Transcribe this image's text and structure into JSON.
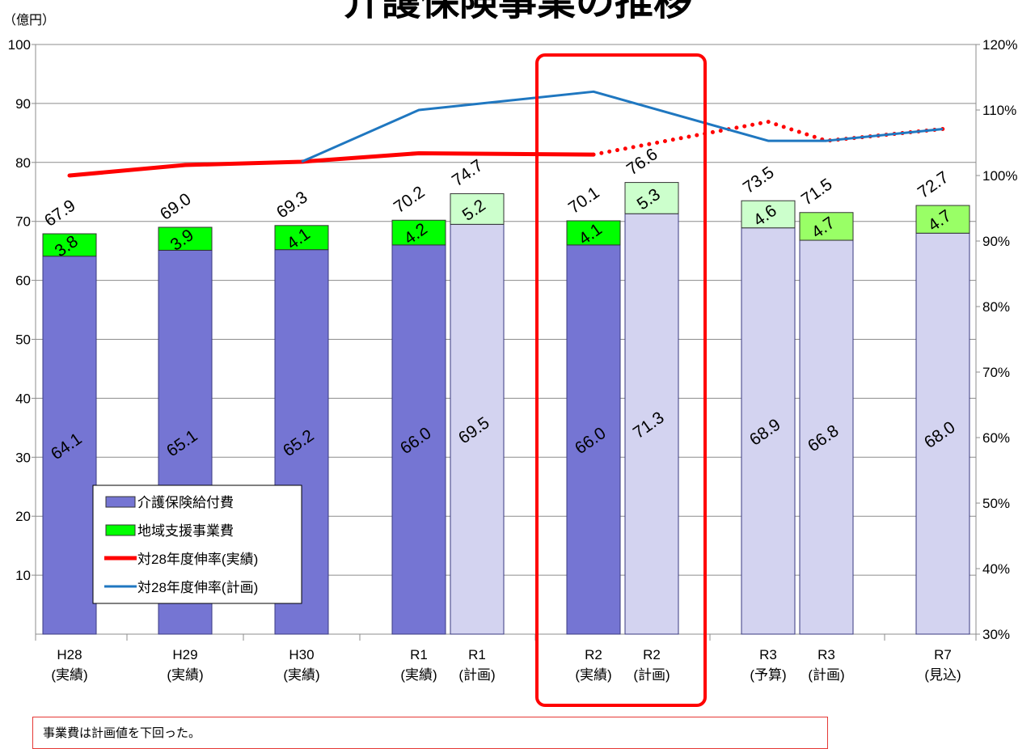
{
  "title": "介護保険事業の推移",
  "chart_data": {
    "type": "bar",
    "unit_label": "（億円）",
    "categories": [
      [
        "H28",
        "(実績)"
      ],
      [
        "H29",
        "(実績)"
      ],
      [
        "H30",
        "(実績)"
      ],
      [
        "R1",
        "(実績)"
      ],
      [
        "R1",
        "(計画)"
      ],
      [
        "R2",
        "(実績)"
      ],
      [
        "R2",
        "(計画)"
      ],
      [
        "R3",
        "(予算)"
      ],
      [
        "R3",
        "(計画)"
      ],
      [
        "R7",
        "(見込)"
      ]
    ],
    "kinds": [
      "actual",
      "actual",
      "actual",
      "actual",
      "plan",
      "actual",
      "plan",
      "plan",
      "plan",
      "plan"
    ],
    "series": [
      {
        "name": "介護保険給付費",
        "values": [
          64.1,
          65.1,
          65.2,
          66.0,
          69.5,
          66.0,
          71.3,
          68.9,
          66.8,
          68.0
        ]
      },
      {
        "name": "地域支援事業費",
        "values": [
          3.8,
          3.9,
          4.1,
          4.2,
          5.2,
          4.1,
          5.3,
          4.6,
          4.7,
          4.7
        ]
      }
    ],
    "totals": [
      67.9,
      69.0,
      69.3,
      70.2,
      74.7,
      70.1,
      76.6,
      73.5,
      71.5,
      72.7
    ],
    "rate_series": [
      {
        "name": "対28年度伸率(実績)",
        "style": "red",
        "points": [
          [
            0,
            100.0
          ],
          [
            1,
            101.6
          ],
          [
            2,
            102.1
          ],
          [
            3,
            103.4
          ],
          [
            5,
            103.2
          ]
        ]
      },
      {
        "name": "対28年度伸率(実績)",
        "style": "red-dotted",
        "points": [
          [
            5,
            103.2
          ],
          [
            7,
            108.2
          ],
          [
            8,
            105.3
          ],
          [
            9,
            107.1
          ]
        ]
      },
      {
        "name": "対28年度伸率(計画)",
        "style": "blue",
        "points": [
          [
            2,
            102.1
          ],
          [
            3,
            110.0
          ],
          [
            5,
            112.8
          ],
          [
            7,
            105.3
          ],
          [
            8,
            105.3
          ],
          [
            9,
            107.1
          ]
        ]
      }
    ],
    "ylim": [
      0,
      100
    ],
    "yticks": [
      "10",
      "20",
      "30",
      "40",
      "50",
      "60",
      "70",
      "80",
      "90",
      "100"
    ],
    "y2lim": [
      30,
      120
    ],
    "y2ticks": [
      "30%",
      "40%",
      "50%",
      "60%",
      "70%",
      "80%",
      "90%",
      "100%",
      "110%",
      "120%"
    ],
    "grid": true,
    "legend_position": "bottom-left",
    "legend": [
      "介護保険給付費",
      "地域支援事業費",
      "対28年度伸率(実績)",
      "対28年度伸率(計画)"
    ],
    "colors": {
      "benefit_actual": "#7575d3",
      "benefit_plan": "#d3d3f0",
      "support_actual": "#00ff00",
      "support_plan_light": "#ccffcc",
      "support_plan_mid": "#99ff66",
      "rate_actual": "#ff0000",
      "rate_plan": "#1f77c0",
      "highlight": "#ff0000"
    }
  },
  "note": "事業費は計画値を下回った。"
}
